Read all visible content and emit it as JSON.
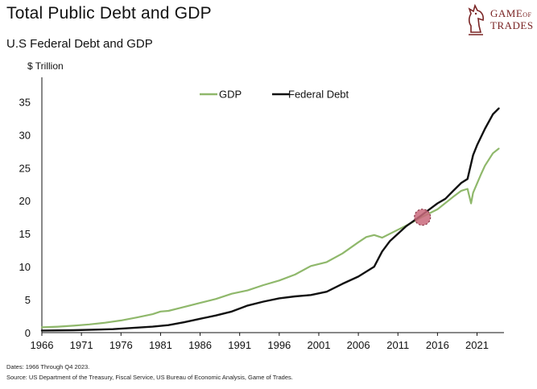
{
  "header": {
    "title": "Total Public Debt and GDP",
    "subtitle": "U.S Federal Debt and GDP",
    "unit": "$ Trillion"
  },
  "logo": {
    "line1": "GAME",
    "line1_small": "OF",
    "line2": "TRADES",
    "icon": "knight-chess-piece-icon",
    "color": "#7a2424"
  },
  "footer": {
    "dates": "Dates: 1966 Through Q4 2023.",
    "source": "Source: US Department of the Treasury, Fiscal Service, US Bureau of Economic Analysis, Game of Trades."
  },
  "chart_data": {
    "type": "line",
    "title": "",
    "xlabel": "",
    "ylabel": "$ Trillion",
    "xlim": [
      1966,
      2024
    ],
    "ylim": [
      0,
      37
    ],
    "yticks": [
      0,
      5,
      10,
      15,
      20,
      25,
      30,
      35
    ],
    "xticks": [
      1966,
      1971,
      1976,
      1981,
      1986,
      1991,
      1996,
      2001,
      2006,
      2011,
      2016,
      2021
    ],
    "grid": false,
    "legend": "top-center",
    "annotation": {
      "type": "crossover-marker",
      "x": 2014.1,
      "y": 17.5,
      "color": "#c9687b"
    },
    "series": [
      {
        "name": "GDP",
        "color": "#8fb86b",
        "points": [
          [
            1966,
            0.8
          ],
          [
            1968,
            0.9
          ],
          [
            1970,
            1.05
          ],
          [
            1972,
            1.25
          ],
          [
            1974,
            1.5
          ],
          [
            1976,
            1.85
          ],
          [
            1978,
            2.3
          ],
          [
            1980,
            2.8
          ],
          [
            1981,
            3.2
          ],
          [
            1982,
            3.3
          ],
          [
            1984,
            3.9
          ],
          [
            1986,
            4.5
          ],
          [
            1988,
            5.1
          ],
          [
            1990,
            5.9
          ],
          [
            1992,
            6.4
          ],
          [
            1994,
            7.2
          ],
          [
            1996,
            7.9
          ],
          [
            1998,
            8.8
          ],
          [
            2000,
            10.1
          ],
          [
            2002,
            10.7
          ],
          [
            2004,
            12.0
          ],
          [
            2006,
            13.7
          ],
          [
            2007,
            14.5
          ],
          [
            2008,
            14.8
          ],
          [
            2009,
            14.4
          ],
          [
            2010,
            15.0
          ],
          [
            2012,
            16.2
          ],
          [
            2014,
            17.5
          ],
          [
            2016,
            18.7
          ],
          [
            2018,
            20.6
          ],
          [
            2019,
            21.5
          ],
          [
            2019.8,
            21.8
          ],
          [
            2020.25,
            19.6
          ],
          [
            2020.5,
            21.2
          ],
          [
            2021,
            22.6
          ],
          [
            2021.5,
            24.0
          ],
          [
            2022,
            25.3
          ],
          [
            2023,
            27.2
          ],
          [
            2023.75,
            27.9
          ]
        ]
      },
      {
        "name": "Federal Debt",
        "color": "#111111",
        "points": [
          [
            1966,
            0.32
          ],
          [
            1970,
            0.37
          ],
          [
            1975,
            0.53
          ],
          [
            1980,
            0.9
          ],
          [
            1982,
            1.14
          ],
          [
            1984,
            1.57
          ],
          [
            1986,
            2.1
          ],
          [
            1988,
            2.6
          ],
          [
            1990,
            3.2
          ],
          [
            1992,
            4.1
          ],
          [
            1994,
            4.7
          ],
          [
            1996,
            5.2
          ],
          [
            1998,
            5.5
          ],
          [
            2000,
            5.7
          ],
          [
            2002,
            6.2
          ],
          [
            2004,
            7.4
          ],
          [
            2006,
            8.5
          ],
          [
            2008,
            10.0
          ],
          [
            2009,
            12.3
          ],
          [
            2010,
            13.9
          ],
          [
            2012,
            16.1
          ],
          [
            2014,
            17.8
          ],
          [
            2016,
            19.6
          ],
          [
            2017,
            20.3
          ],
          [
            2018,
            21.5
          ],
          [
            2019,
            22.7
          ],
          [
            2019.8,
            23.3
          ],
          [
            2020.5,
            26.9
          ],
          [
            2021,
            28.4
          ],
          [
            2022,
            30.9
          ],
          [
            2023,
            33.1
          ],
          [
            2023.75,
            34.0
          ]
        ]
      }
    ]
  }
}
